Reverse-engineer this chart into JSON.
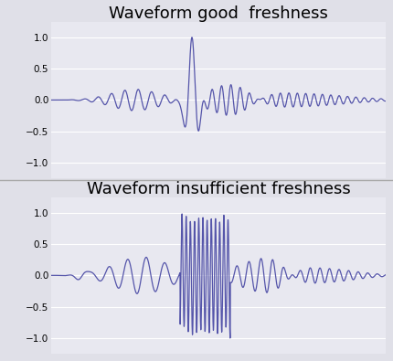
{
  "title1": "Waveform good  freshness",
  "title2": "Waveform insufficient freshness",
  "title_fontsize": 13,
  "line_color": "#5555aa",
  "line_width": 0.9,
  "ylim": [
    -1.25,
    1.25
  ],
  "yticks": [
    -1,
    -0.5,
    0,
    0.5,
    1
  ],
  "background_color": "#e0e0e8",
  "axes_bg": "#e8e8f0",
  "n_points": 2000
}
